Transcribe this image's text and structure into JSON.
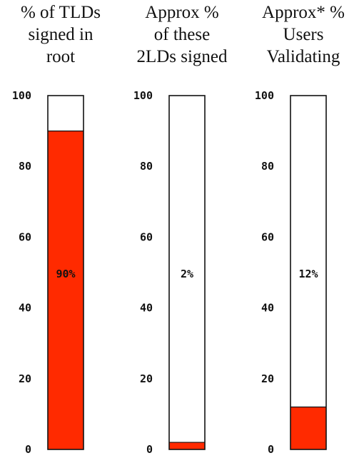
{
  "chart_data": [
    {
      "type": "bar",
      "title": "% of TLDs\nsigned in\nroot",
      "ylim": [
        0,
        100
      ],
      "yticks": [
        "100",
        "80",
        "60",
        "40",
        "20",
        "0"
      ],
      "value": 90,
      "label": "90%",
      "fill_color": "#ff2a00"
    },
    {
      "type": "bar",
      "title": "Approx %\nof these\n2LDs signed",
      "ylim": [
        0,
        100
      ],
      "yticks": [
        "100",
        "80",
        "60",
        "40",
        "20",
        "0"
      ],
      "value": 2,
      "label": "2%",
      "fill_color": "#ff2a00"
    },
    {
      "type": "bar",
      "title": "Approx* %\nUsers\nValidating",
      "ylim": [
        0,
        100
      ],
      "yticks": [
        "100",
        "80",
        "60",
        "40",
        "20",
        "0"
      ],
      "value": 12,
      "label": "12%",
      "fill_color": "#ff2a00"
    }
  ]
}
